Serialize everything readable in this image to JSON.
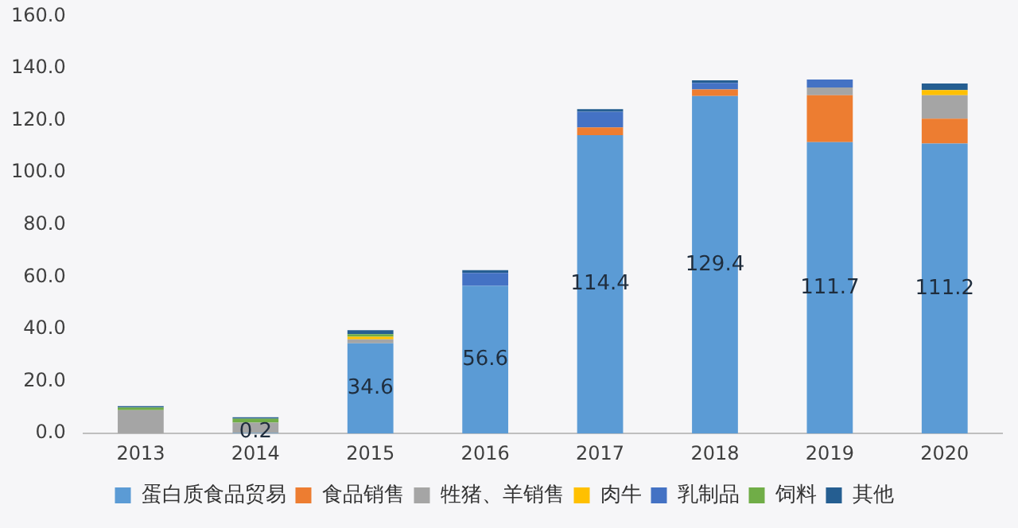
{
  "chart_data": {
    "type": "bar",
    "stacked": true,
    "categories": [
      "2013",
      "2014",
      "2015",
      "2016",
      "2017",
      "2018",
      "2019",
      "2020"
    ],
    "ylim": [
      0,
      160
    ],
    "yticks": [
      {
        "value": 0,
        "label": "0.0"
      },
      {
        "value": 20,
        "label": "20.0"
      },
      {
        "value": 40,
        "label": "40.0"
      },
      {
        "value": 60,
        "label": "60.0"
      },
      {
        "value": 80,
        "label": "80.0"
      },
      {
        "value": 100,
        "label": "100.0"
      },
      {
        "value": 120,
        "label": "120.0"
      },
      {
        "value": 140,
        "label": "140.0"
      },
      {
        "value": 160,
        "label": "160.0"
      }
    ],
    "grid": false,
    "legend": "bottom",
    "series": [
      {
        "name": "蛋白质食品贸易",
        "color": "#5b9bd5",
        "values": [
          0,
          0.2,
          34.6,
          56.6,
          114.4,
          129.4,
          111.7,
          111.2
        ],
        "value_labels": [
          null,
          "0.2",
          "34.6",
          "56.6",
          "114.4",
          "129.4",
          "111.7",
          "111.2"
        ]
      },
      {
        "name": "食品销售",
        "color": "#ed7d31",
        "values": [
          0,
          0,
          0,
          0,
          3,
          2.5,
          18,
          9.5
        ]
      },
      {
        "name": "牲猪、羊销售",
        "color": "#a5a5a5",
        "values": [
          9,
          4,
          1.5,
          0,
          0,
          0,
          3,
          9
        ]
      },
      {
        "name": "肉牛",
        "color": "#ffc000",
        "values": [
          0,
          0,
          1,
          0,
          0,
          0,
          0,
          2
        ]
      },
      {
        "name": "乳制品",
        "color": "#4472c4",
        "values": [
          0,
          0,
          0,
          5,
          6,
          2.5,
          3,
          0
        ]
      },
      {
        "name": "饲料",
        "color": "#70ad47",
        "values": [
          1,
          1.5,
          1,
          0,
          0,
          0,
          0,
          0
        ]
      },
      {
        "name": "其他",
        "color": "#255e91",
        "values": [
          0.5,
          0.5,
          1.5,
          1,
          1,
          1,
          0,
          2.5
        ]
      }
    ]
  }
}
